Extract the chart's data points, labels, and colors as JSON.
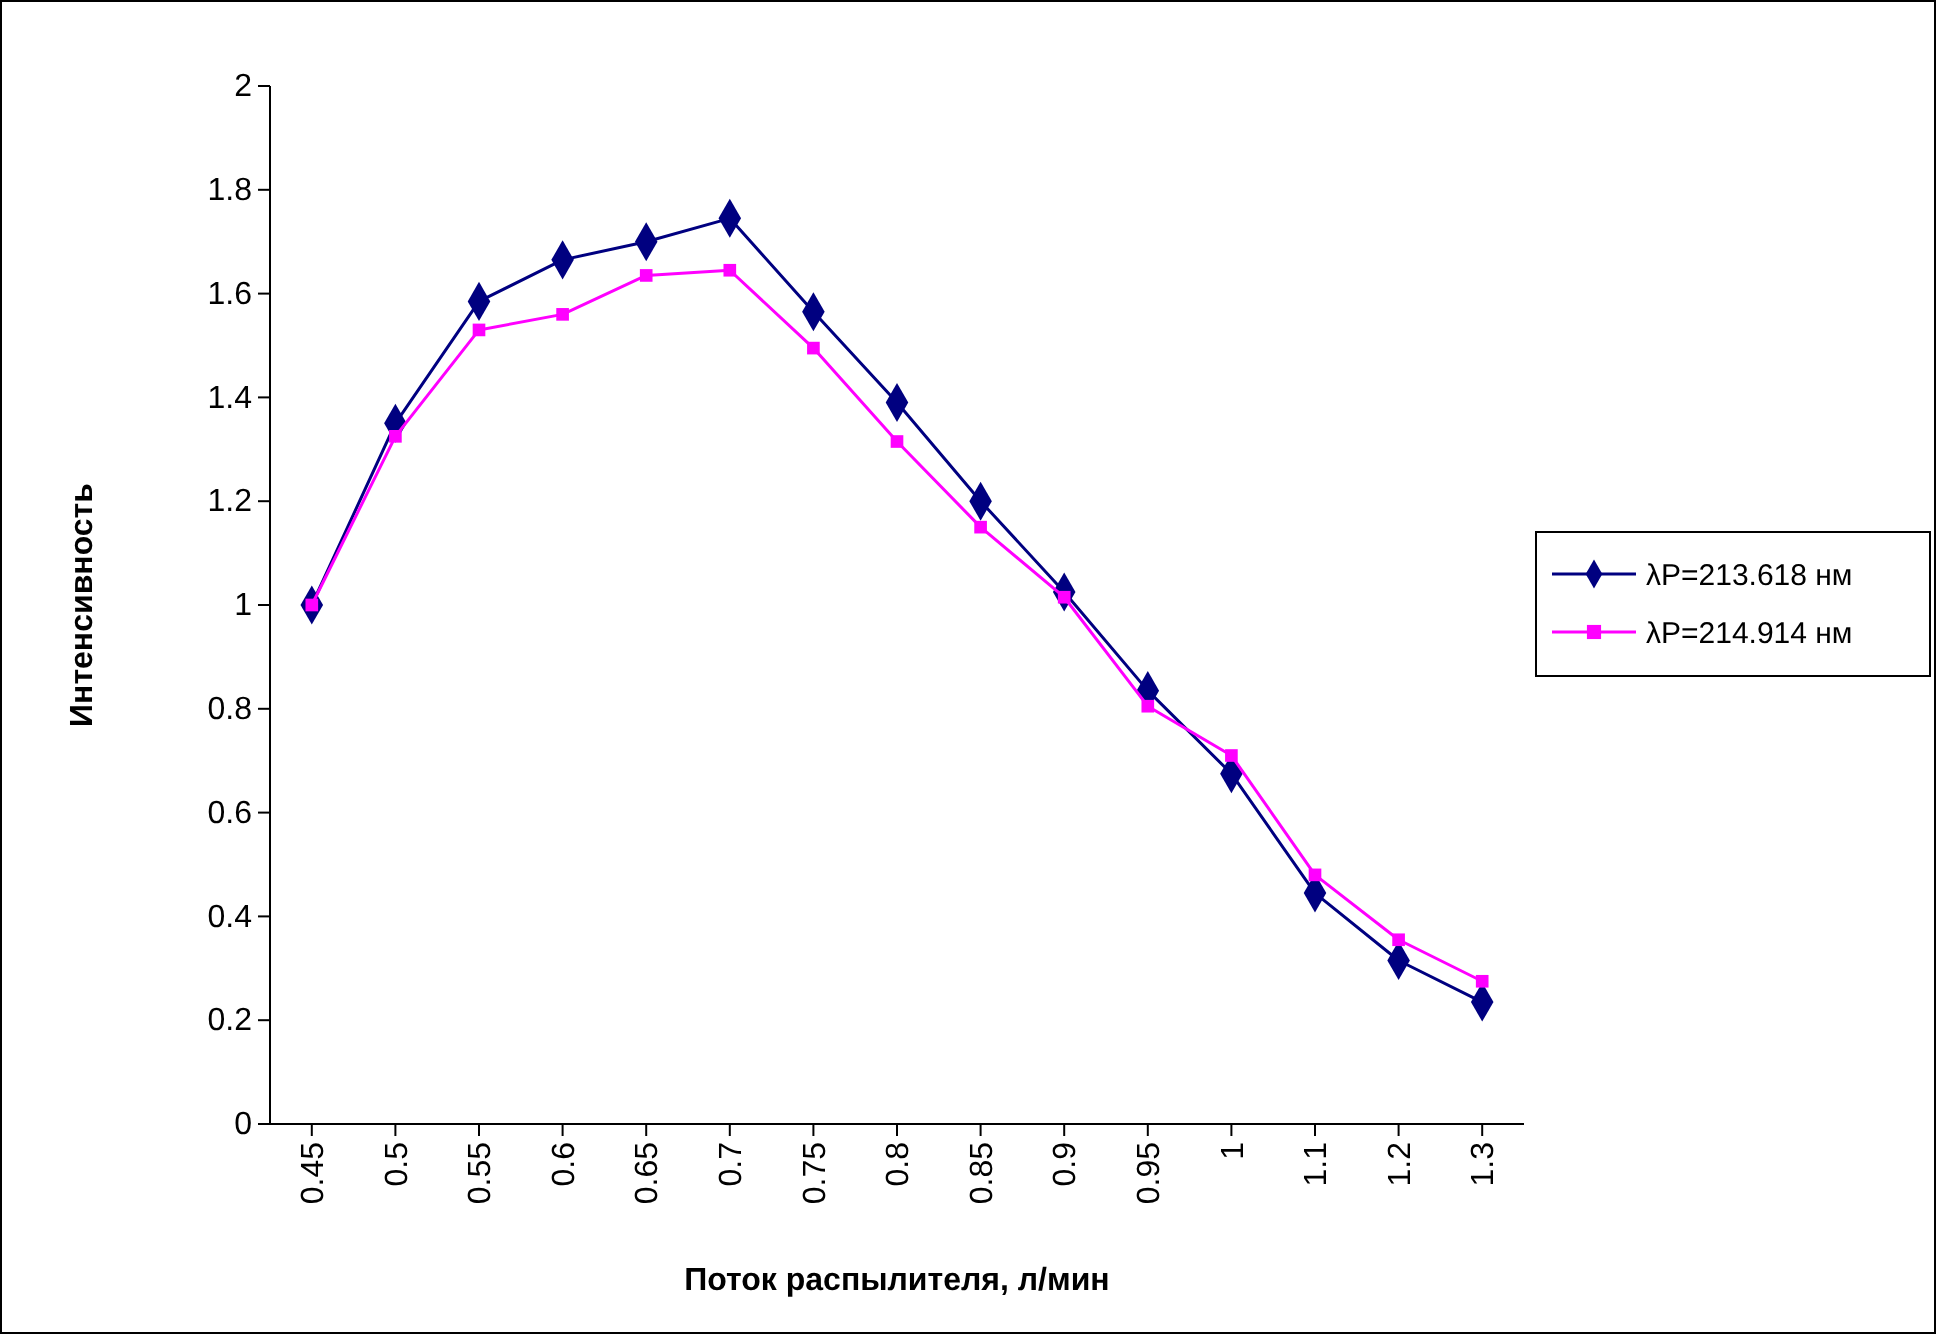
{
  "chart_data": {
    "type": "line",
    "xlabel": "Поток распылителя, л/мин",
    "ylabel": "Интенсивность",
    "categories": [
      "0.45",
      "0.5",
      "0.55",
      "0.6",
      "0.65",
      "0.7",
      "0.75",
      "0.8",
      "0.85",
      "0.9",
      "0.95",
      "1",
      "1.1",
      "1.2",
      "1.3"
    ],
    "series": [
      {
        "name": "λP=213.618 нм",
        "color": "#000080",
        "marker": "diamond",
        "values": [
          1.0,
          1.35,
          1.585,
          1.665,
          1.7,
          1.745,
          1.565,
          1.39,
          1.2,
          1.025,
          0.835,
          0.675,
          0.445,
          0.315,
          0.235
        ]
      },
      {
        "name": "λP=214.914 нм",
        "color": "#ff00ff",
        "marker": "square",
        "values": [
          1.0,
          1.325,
          1.53,
          1.56,
          1.635,
          1.645,
          1.495,
          1.315,
          1.15,
          1.015,
          0.805,
          0.71,
          0.48,
          0.355,
          0.275
        ]
      }
    ],
    "ylim": [
      0,
      2
    ],
    "yticks": [
      0,
      0.2,
      0.4,
      0.6,
      0.8,
      1,
      1.2,
      1.4,
      1.6,
      1.8,
      2
    ],
    "grid": false,
    "legend": "right",
    "line_style": "solid"
  }
}
